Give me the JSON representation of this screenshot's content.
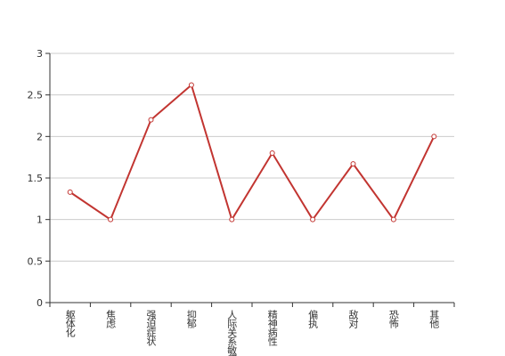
{
  "chart_data": {
    "type": "line",
    "categories": [
      "躯体化",
      "焦虑",
      "强迫症状",
      "抑郁",
      "人际关系敏感",
      "精神病性",
      "偏执",
      "敌对",
      "恐怖",
      "其他"
    ],
    "values": [
      1.33,
      1,
      2.2,
      2.62,
      1,
      1.8,
      1,
      1.67,
      1,
      2
    ],
    "color": "#c23531",
    "ylim": [
      0,
      3
    ],
    "yticks": [
      0,
      0.5,
      1,
      1.5,
      2,
      2.5,
      3
    ],
    "grid": true
  }
}
